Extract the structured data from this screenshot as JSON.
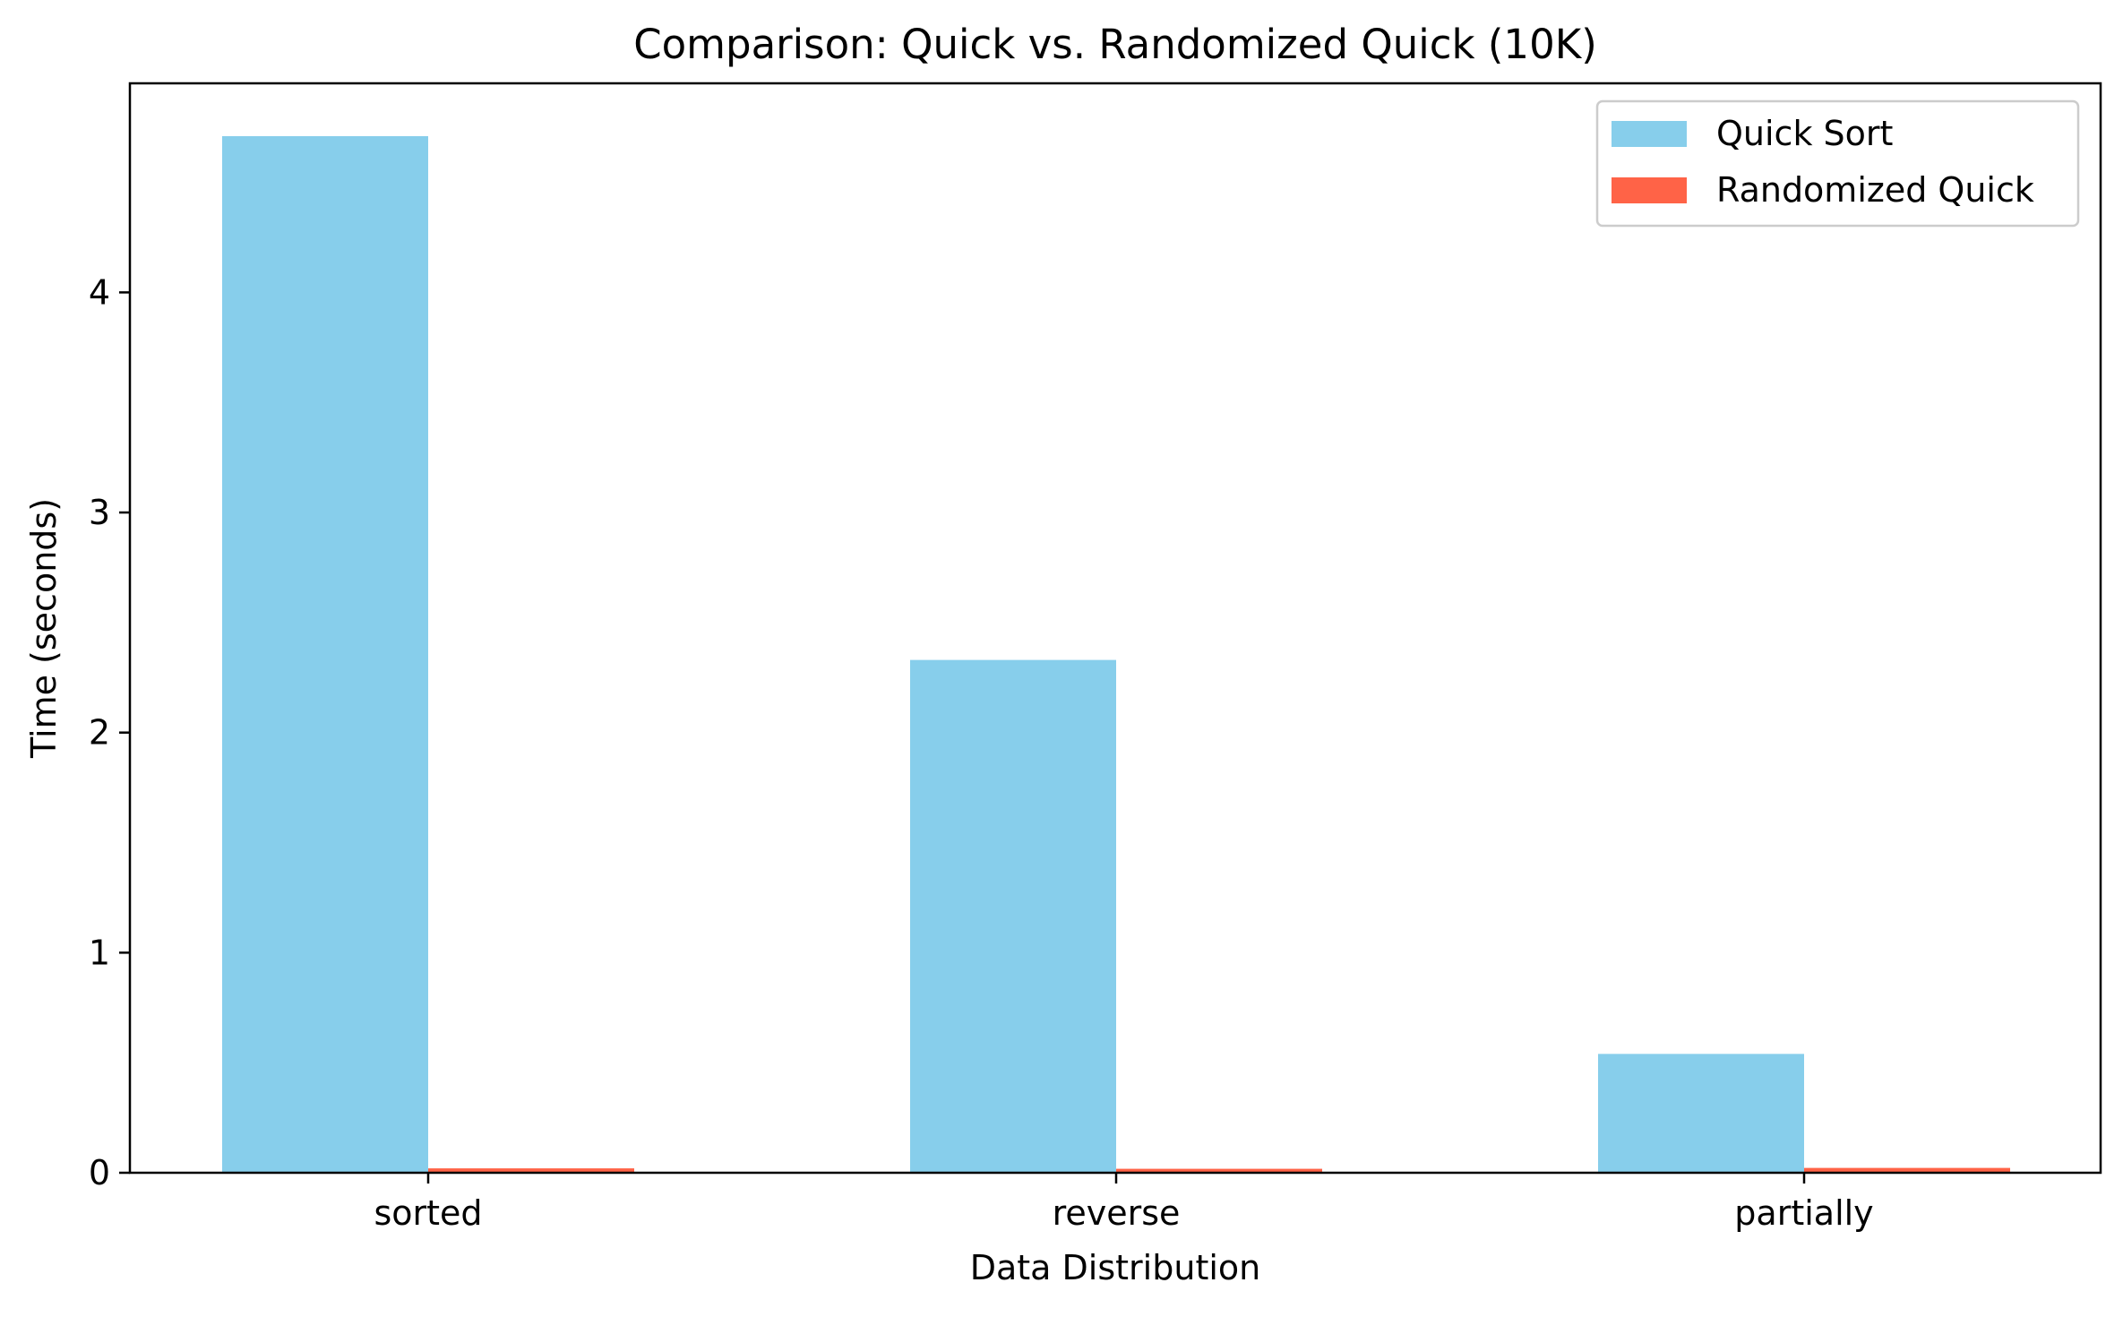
{
  "chart_data": {
    "type": "bar",
    "title": "Comparison: Quick vs. Randomized Quick (10K)",
    "xlabel": "Data Distribution",
    "ylabel": "Time (seconds)",
    "categories": [
      "sorted",
      "reverse",
      "partially"
    ],
    "series": [
      {
        "name": "Quick Sort",
        "values": [
          4.71,
          2.33,
          0.54
        ],
        "color": "#87CEEB"
      },
      {
        "name": "Randomized Quick",
        "values": [
          0.02,
          0.018,
          0.022
        ],
        "color": "#FF6347"
      }
    ],
    "ylim": [
      0,
      4.95
    ],
    "yticks": [
      0,
      1,
      2,
      3,
      4
    ],
    "grid": false,
    "legend_position": "top-right"
  }
}
